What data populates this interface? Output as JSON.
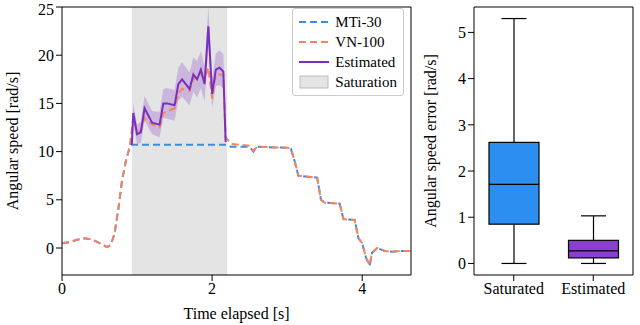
{
  "chart_data": [
    {
      "type": "line",
      "xlabel": "Time elapsed [s]",
      "ylabel": "Angular speed [rad/s]",
      "xlim": [
        0,
        4.65
      ],
      "ylim": [
        -2.8,
        25
      ],
      "xticks": [
        0,
        2,
        4
      ],
      "yticks": [
        0,
        5,
        10,
        15,
        20,
        25
      ],
      "legend": "upper right",
      "series": [
        {
          "name": "MTi-30",
          "color": "#3b8de0",
          "line_style": "dashed",
          "x": [
            0,
            0.1,
            0.2,
            0.3,
            0.4,
            0.5,
            0.6,
            0.65,
            0.7,
            0.75,
            0.8,
            0.85,
            0.9,
            0.93,
            1.5,
            2.0,
            2.2,
            2.25,
            2.5,
            2.55,
            2.6,
            3.0,
            3.05,
            3.1,
            3.15,
            3.4,
            3.45,
            3.5,
            3.7,
            3.75,
            3.9,
            3.95,
            4.0,
            4.05,
            4.1,
            4.13,
            4.2,
            4.3,
            4.4,
            4.5,
            4.65
          ],
          "values": [
            0.5,
            0.6,
            0.85,
            1.0,
            0.9,
            0.5,
            0.1,
            0.3,
            1.5,
            4.0,
            7.0,
            9.0,
            10.4,
            10.7,
            10.7,
            10.7,
            10.7,
            10.5,
            10.5,
            10.0,
            10.5,
            10.4,
            10.3,
            9.0,
            7.5,
            7.3,
            5.0,
            4.7,
            4.6,
            3.0,
            2.9,
            1.0,
            0.5,
            -1.0,
            -1.8,
            -0.5,
            0.0,
            -0.3,
            -0.4,
            -0.3,
            -0.3
          ]
        },
        {
          "name": "VN-100",
          "color": "#f4845f",
          "line_style": "dashed",
          "x": [
            0,
            0.1,
            0.2,
            0.3,
            0.4,
            0.5,
            0.6,
            0.65,
            0.7,
            0.75,
            0.8,
            0.85,
            0.9,
            0.95,
            1.0,
            1.05,
            1.1,
            1.2,
            1.3,
            1.35,
            1.5,
            1.55,
            1.6,
            1.7,
            1.75,
            1.85,
            1.9,
            1.95,
            2.0,
            2.05,
            2.15,
            2.18,
            2.25,
            2.5,
            2.55,
            2.6,
            3.0,
            3.05,
            3.1,
            3.15,
            3.4,
            3.45,
            3.5,
            3.7,
            3.75,
            3.9,
            3.95,
            4.0,
            4.05,
            4.1,
            4.13,
            4.2,
            4.3,
            4.4,
            4.5,
            4.65
          ],
          "values": [
            0.5,
            0.6,
            0.85,
            1.0,
            0.9,
            0.5,
            0.1,
            0.3,
            1.5,
            4.0,
            7.0,
            9.0,
            10.4,
            13.5,
            12.0,
            12.2,
            13.5,
            12.8,
            12.5,
            14.0,
            14.5,
            16.0,
            16.5,
            16.3,
            17.5,
            18.0,
            17.5,
            18.7,
            15.5,
            18.0,
            18.0,
            11.5,
            10.8,
            10.6,
            10.1,
            10.5,
            10.4,
            10.3,
            9.0,
            7.5,
            7.3,
            5.0,
            4.7,
            4.6,
            3.0,
            2.9,
            1.0,
            0.5,
            -1.0,
            -1.8,
            -0.5,
            0.0,
            -0.3,
            -0.4,
            -0.3,
            -0.3
          ]
        },
        {
          "name": "Estimated",
          "color": "#7b2fbe",
          "line_style": "solid",
          "x": [
            0.93,
            0.95,
            1.0,
            1.05,
            1.1,
            1.2,
            1.3,
            1.35,
            1.4,
            1.5,
            1.55,
            1.6,
            1.7,
            1.75,
            1.8,
            1.85,
            1.9,
            1.95,
            2.0,
            2.05,
            2.1,
            2.15,
            2.18
          ],
          "values": [
            10.7,
            14.0,
            11.8,
            12.0,
            14.5,
            13.0,
            12.8,
            15.0,
            15.0,
            14.8,
            17.0,
            17.5,
            16.5,
            18.0,
            17.5,
            18.5,
            17.0,
            23.0,
            16.0,
            18.5,
            18.7,
            18.3,
            11.0
          ],
          "lower": [
            10.7,
            13.0,
            10.8,
            10.9,
            13.2,
            11.8,
            11.5,
            13.5,
            13.4,
            13.2,
            15.3,
            15.7,
            14.8,
            16.2,
            15.6,
            16.6,
            15.2,
            21.0,
            14.5,
            16.8,
            16.9,
            16.5,
            10.5
          ],
          "upper": [
            10.7,
            15.0,
            12.8,
            13.1,
            15.8,
            14.2,
            14.1,
            16.5,
            16.6,
            16.4,
            18.7,
            19.3,
            18.2,
            19.8,
            19.4,
            20.4,
            18.8,
            25.0,
            17.5,
            20.2,
            20.5,
            20.1,
            11.5
          ]
        }
      ],
      "shaded_regions": [
        {
          "name": "Saturation",
          "color": "#e4e4e4",
          "x": [
            0.93,
            2.2
          ]
        }
      ]
    },
    {
      "type": "box",
      "ylabel": "Angular speed error [rad/s]",
      "categories": [
        "Saturated",
        "Estimated"
      ],
      "colors": [
        "#2b8ef0",
        "#8a3fd1"
      ],
      "min": [
        0,
        0
      ],
      "q1": [
        0.85,
        0.12
      ],
      "median": [
        1.71,
        0.27
      ],
      "q3": [
        2.62,
        0.5
      ],
      "max": [
        5.3,
        1.03
      ],
      "ylim": [
        -0.25,
        5.55
      ],
      "yticks": [
        0,
        1,
        2,
        3,
        4,
        5
      ]
    }
  ]
}
